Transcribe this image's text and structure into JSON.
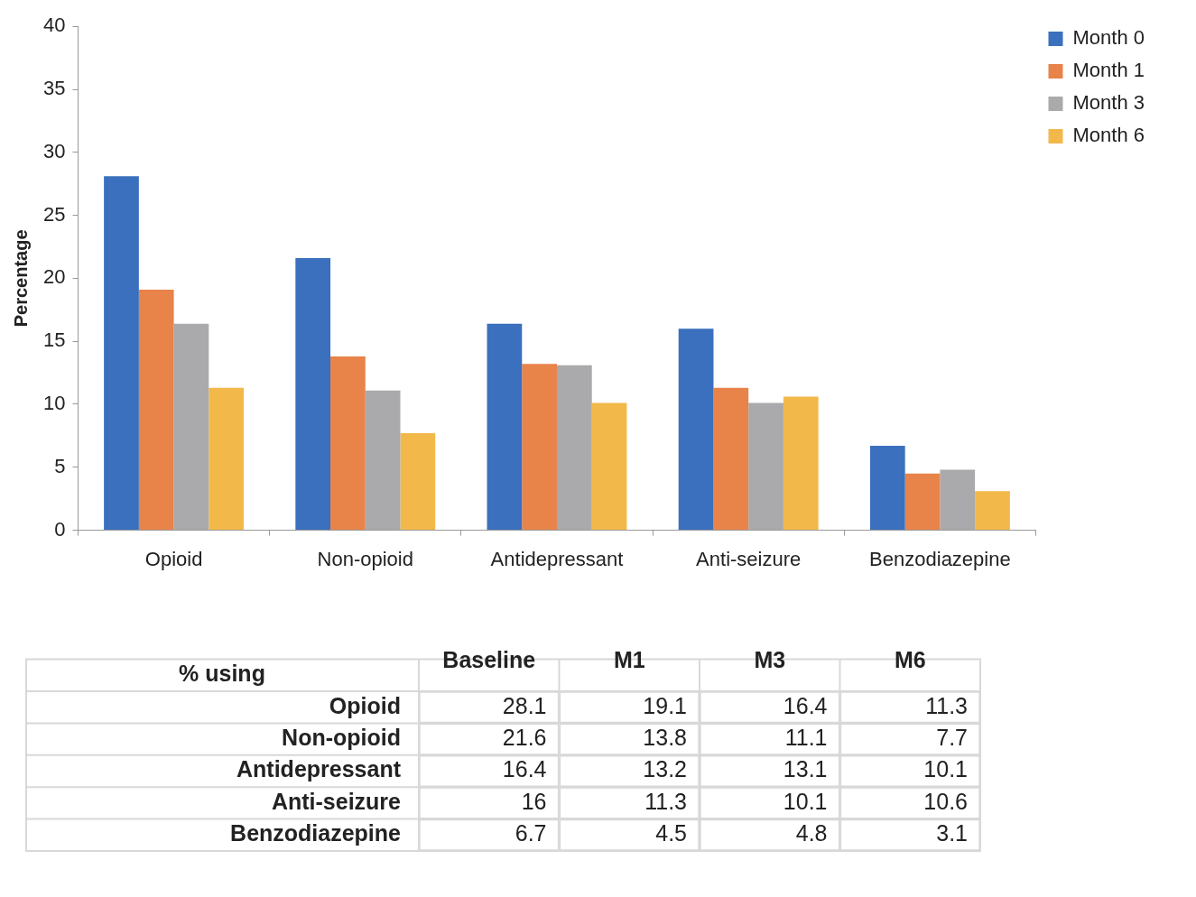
{
  "chart_data": [
    {
      "type": "bar",
      "ylabel": "Percentage",
      "categories": [
        "Opioid",
        "Non-opioid",
        "Antidepressant",
        "Anti-seizure",
        "Benzodiazepine"
      ],
      "series": [
        {
          "name": "Month 0",
          "color": "#3a70bd",
          "values": [
            28.1,
            21.6,
            16.4,
            16,
            6.7
          ]
        },
        {
          "name": "Month 1",
          "color": "#e8834a",
          "values": [
            19.1,
            13.8,
            13.2,
            11.3,
            4.5
          ]
        },
        {
          "name": "Month 3",
          "color": "#aaaaac",
          "values": [
            16.4,
            11.1,
            13.1,
            10.1,
            4.8
          ]
        },
        {
          "name": "Month 6",
          "color": "#f2b94a",
          "values": [
            11.3,
            7.7,
            10.1,
            10.6,
            3.1
          ]
        }
      ],
      "ylim": [
        0,
        40
      ],
      "yticks": [
        0,
        5,
        10,
        15,
        20,
        25,
        30,
        35,
        40
      ],
      "grid": false,
      "legend": "top right"
    },
    {
      "type": "heatmap",
      "data_labels": true,
      "annotations": [
        "% using"
      ],
      "categories": [
        "Baseline",
        "M1",
        "M3",
        "M6"
      ],
      "y_categories": [
        "Opioid",
        "Non-opioid",
        "Antidepressant",
        "Anti-seizure",
        "Benzodiazepine"
      ],
      "cells": [
        [
          28.1,
          19.1,
          16.4,
          11.3
        ],
        [
          21.6,
          13.8,
          11.1,
          7.7
        ],
        [
          16.4,
          13.2,
          13.1,
          10.1
        ],
        [
          16,
          11.3,
          10.1,
          10.6
        ],
        [
          6.7,
          4.5,
          4.8,
          3.1
        ]
      ]
    }
  ]
}
